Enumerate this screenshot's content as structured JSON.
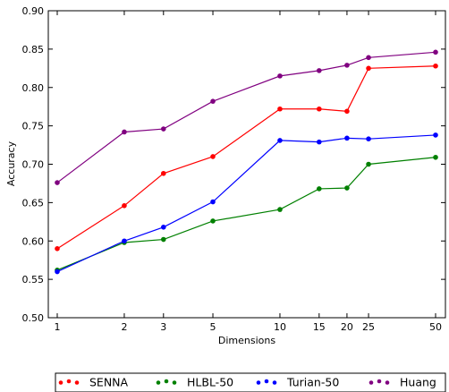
{
  "chart_data": {
    "type": "line",
    "xlabel": "Dimensions",
    "ylabel": "Accuracy",
    "x_scale": "log",
    "x": [
      1,
      2,
      3,
      5,
      10,
      15,
      20,
      25,
      50
    ],
    "x_tick_labels": [
      "1",
      "2",
      "3",
      "5",
      "10",
      "15",
      "20",
      "25",
      "50"
    ],
    "ylim": [
      0.5,
      0.9
    ],
    "y_ticks": [
      0.5,
      0.55,
      0.6,
      0.65,
      0.7,
      0.75,
      0.8,
      0.85,
      0.9
    ],
    "y_tick_labels": [
      "0.50",
      "0.55",
      "0.60",
      "0.65",
      "0.70",
      "0.75",
      "0.80",
      "0.85",
      "0.90"
    ],
    "grid": false,
    "legend_position": "bottom",
    "series": [
      {
        "name": "SENNA",
        "color": "#ff0000",
        "values": [
          0.59,
          0.646,
          0.688,
          0.71,
          0.772,
          0.772,
          0.769,
          0.825,
          0.828
        ]
      },
      {
        "name": "HLBL-50",
        "color": "#008000",
        "values": [
          0.562,
          0.598,
          0.602,
          0.626,
          0.641,
          0.668,
          0.669,
          0.7,
          0.709
        ]
      },
      {
        "name": "Turian-50",
        "color": "#0000ff",
        "values": [
          0.56,
          0.6,
          0.618,
          0.651,
          0.731,
          0.729,
          0.734,
          0.733,
          0.738
        ]
      },
      {
        "name": "Huang",
        "color": "#800080",
        "values": [
          0.676,
          0.742,
          0.746,
          0.782,
          0.815,
          0.822,
          0.829,
          0.839,
          0.846
        ]
      }
    ]
  }
}
